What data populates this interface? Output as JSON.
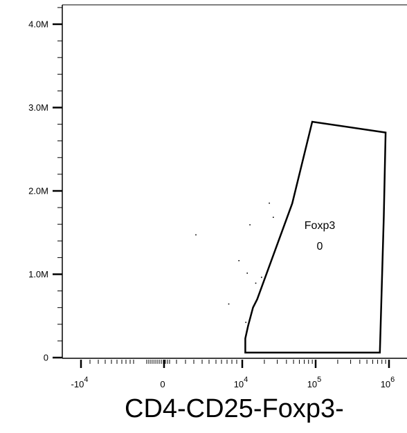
{
  "chart_data": {
    "type": "scatter",
    "xlabel": "CD4-CD25-Foxp3-",
    "x_scale": "biexponential",
    "x_ticks": [
      {
        "value": -10000,
        "base": "-10",
        "exp": "4"
      },
      {
        "value": 0,
        "base": "0",
        "exp": ""
      },
      {
        "value": 10000,
        "base": "10",
        "exp": "4"
      },
      {
        "value": 100000,
        "base": "10",
        "exp": "5"
      },
      {
        "value": 1000000,
        "base": "10",
        "exp": "6"
      }
    ],
    "y_ticks": [
      {
        "value": 0,
        "label": "0"
      },
      {
        "value": 1000000,
        "label": "1.0M"
      },
      {
        "value": 2000000,
        "label": "2.0M"
      },
      {
        "value": 3000000,
        "label": "3.0M"
      },
      {
        "value": 4000000,
        "label": "4.0M"
      }
    ],
    "ylim": [
      0,
      4200000
    ],
    "points": [
      {
        "x": 4000,
        "y": 1480000
      },
      {
        "x": 9500,
        "y": 1170000
      },
      {
        "x": 8200,
        "y": 650000
      },
      {
        "x": 11500,
        "y": 1020000
      },
      {
        "x": 12500,
        "y": 1600000
      },
      {
        "x": 11000,
        "y": 430000
      },
      {
        "x": 15000,
        "y": 900000
      },
      {
        "x": 18000,
        "y": 970000
      },
      {
        "x": 23000,
        "y": 1860000
      },
      {
        "x": 26000,
        "y": 1690000
      }
    ],
    "gates": [
      {
        "name": "Foxp3",
        "value": "0",
        "polygon": [
          [
            11000,
            50000
          ],
          [
            11000,
            230000
          ],
          [
            12000,
            380000
          ],
          [
            14000,
            600000
          ],
          [
            16000,
            700000
          ],
          [
            48000,
            1850000
          ],
          [
            90000,
            2830000
          ],
          [
            900000,
            2700000
          ],
          [
            850000,
            1700000
          ],
          [
            750000,
            60000
          ],
          [
            11000,
            60000
          ]
        ]
      }
    ]
  }
}
